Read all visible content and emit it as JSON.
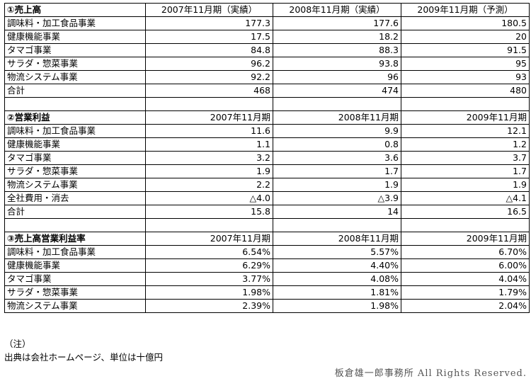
{
  "sections": [
    {
      "title": "①売上高",
      "headers": [
        "2007年11月期（実績）",
        "2008年11月期（実績）",
        "2009年11月期（予測）"
      ],
      "rows": [
        {
          "label": "調味料・加工食品事業",
          "values": [
            "177.3",
            "177.6",
            "180.5"
          ]
        },
        {
          "label": "健康機能事業",
          "values": [
            "17.5",
            "18.2",
            "20"
          ]
        },
        {
          "label": "タマゴ事業",
          "values": [
            "84.8",
            "88.3",
            "91.5"
          ]
        },
        {
          "label": "サラダ・惣菜事業",
          "values": [
            "96.2",
            "93.8",
            "95"
          ]
        },
        {
          "label": "物流システム事業",
          "values": [
            "92.2",
            "96",
            "93"
          ]
        },
        {
          "label": "合計",
          "values": [
            "468",
            "474",
            "480"
          ]
        }
      ]
    },
    {
      "title": "②営業利益",
      "headers": [
        "2007年11月期",
        "2008年11月期",
        "2009年11月期"
      ],
      "rows": [
        {
          "label": "調味料・加工食品事業",
          "values": [
            "11.6",
            "9.9",
            "12.1"
          ]
        },
        {
          "label": "健康機能事業",
          "values": [
            "1.1",
            "0.8",
            "1.2"
          ]
        },
        {
          "label": "タマゴ事業",
          "values": [
            "3.2",
            "3.6",
            "3.7"
          ]
        },
        {
          "label": "サラダ・惣菜事業",
          "values": [
            "1.9",
            "1.7",
            "1.7"
          ]
        },
        {
          "label": "物流システム事業",
          "values": [
            "2.2",
            "1.9",
            "1.9"
          ]
        },
        {
          "label": "全社費用・消去",
          "values": [
            "△4.0",
            "△3.9",
            "△4.1"
          ]
        },
        {
          "label": "合計",
          "values": [
            "15.8",
            "14",
            "16.5"
          ]
        }
      ]
    },
    {
      "title": "③売上高営業利益率",
      "headers": [
        "2007年11月期",
        "2008年11月期",
        "2009年11月期"
      ],
      "rows": [
        {
          "label": "調味料・加工食品事業",
          "values": [
            "6.54%",
            "5.57%",
            "6.70%"
          ]
        },
        {
          "label": "健康機能事業",
          "values": [
            "6.29%",
            "4.40%",
            "6.00%"
          ]
        },
        {
          "label": "タマゴ事業",
          "values": [
            "3.77%",
            "4.08%",
            "4.04%"
          ]
        },
        {
          "label": "サラダ・惣菜事業",
          "values": [
            "1.98%",
            "1.81%",
            "1.79%"
          ]
        },
        {
          "label": "物流システム事業",
          "values": [
            "2.39%",
            "1.98%",
            "2.04%"
          ]
        }
      ]
    }
  ],
  "notes": {
    "heading": "（注）",
    "source": "出典は会社ホームページ、単位は十億円"
  },
  "credit": "板倉雄一郎事務所 All Rights Reserved."
}
